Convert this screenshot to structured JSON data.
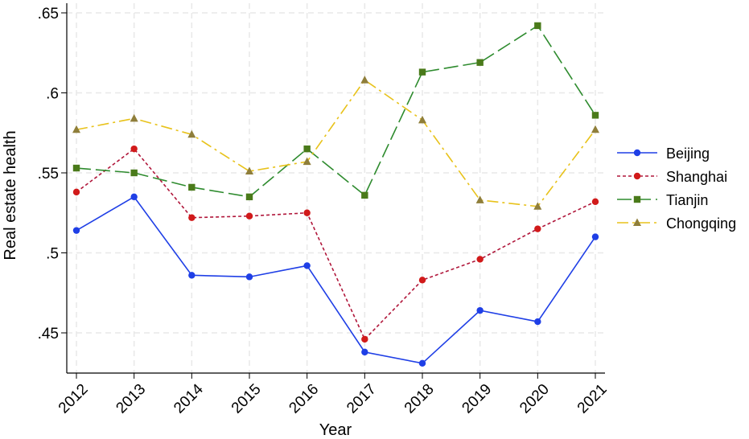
{
  "chart_data": {
    "type": "line",
    "title": "",
    "xlabel": "Year",
    "ylabel": "Real estate health",
    "x": [
      2012,
      2013,
      2014,
      2015,
      2016,
      2017,
      2018,
      2019,
      2020,
      2021
    ],
    "x_tick_labels": [
      "2012",
      "2013",
      "2014",
      "2015",
      "2016",
      "2017",
      "2018",
      "2019",
      "2020",
      "2021"
    ],
    "y_ticks": [
      0.45,
      0.5,
      0.55,
      0.6,
      0.65
    ],
    "y_tick_labels": [
      ".45",
      ".5",
      ".55",
      ".6",
      ".65"
    ],
    "ylim": [
      0.43,
      0.65
    ],
    "grid": true,
    "legend_position": "right",
    "series": [
      {
        "name": "Beijing",
        "color": "#1f3fe6",
        "dash": "solid",
        "marker": "circle",
        "values": [
          0.514,
          0.535,
          0.486,
          0.485,
          0.492,
          0.438,
          0.431,
          0.464,
          0.457,
          0.51
        ]
      },
      {
        "name": "Shanghai",
        "color": "#b0163a",
        "dash": "dotted",
        "marker": "circle-red",
        "values": [
          0.538,
          0.565,
          0.522,
          0.523,
          0.525,
          0.446,
          0.483,
          0.496,
          0.515,
          0.532
        ]
      },
      {
        "name": "Tianjin",
        "color": "#2e8b2e",
        "dash": "longdash",
        "marker": "square",
        "values": [
          0.553,
          0.55,
          0.541,
          0.535,
          0.565,
          0.536,
          0.613,
          0.619,
          0.642,
          0.586
        ]
      },
      {
        "name": "Chongqing",
        "color": "#e8c21a",
        "dash": "dashdot",
        "marker": "triangle",
        "values": [
          0.577,
          0.584,
          0.574,
          0.551,
          0.557,
          0.608,
          0.583,
          0.533,
          0.529,
          0.577
        ]
      }
    ],
    "marker_colors": {
      "circle": "#1f3fe6",
      "circle-red": "#d11a1a",
      "square": "#4a7a1a",
      "triangle": "#8f7e3a"
    }
  }
}
